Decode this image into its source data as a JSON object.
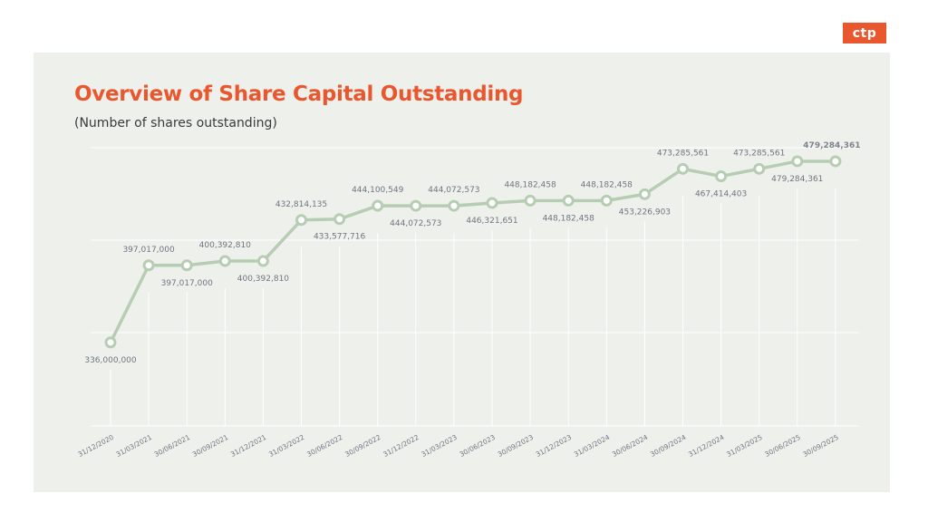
{
  "brand": {
    "logo_text": "ctp",
    "accent_color": "#e9572f"
  },
  "chart_data": {
    "type": "line",
    "title": "Overview of Share Capital Outstanding",
    "subtitle": "(Number of shares outstanding)",
    "xlabel": "",
    "ylabel": "",
    "grid": true,
    "legend": "none",
    "line_color": "#b7cdb3",
    "ylim": [
      270000000,
      490000000
    ],
    "categories": [
      "31/12/2020",
      "31/03/2021",
      "30/06/2021",
      "30/09/2021",
      "31/12/2021",
      "31/03/2022",
      "30/06/2022",
      "30/09/2022",
      "31/12/2022",
      "31/03/2023",
      "30/06/2023",
      "30/09/2023",
      "31/12/2023",
      "31/03/2024",
      "30/06/2024",
      "30/09/2024",
      "31/12/2024",
      "31/03/2025",
      "30/06/2025",
      "30/09/2025"
    ],
    "values": [
      336000000,
      397017000,
      397017000,
      400392810,
      400392810,
      432814135,
      433577716,
      444100549,
      444072573,
      444072573,
      446321651,
      448182458,
      448182458,
      448182458,
      453226903,
      473285561,
      467414403,
      473285561,
      479284361,
      479284361
    ],
    "data_labels": [
      "336,000,000",
      "397,017,000",
      "397,017,000",
      "400,392,810",
      "400,392,810",
      "432,814,135",
      "433,577,716",
      "444,100,549",
      "444,072,573",
      "444,072,573",
      "446,321,651",
      "448,182,458",
      "448,182,458",
      "448,182,458",
      "453,226,903",
      "473,285,561",
      "467,414,403",
      "473,285,561",
      "479,284,361",
      "479,284,361"
    ],
    "label_position": [
      "below",
      "above",
      "below",
      "above",
      "below",
      "above",
      "below",
      "above",
      "below",
      "above",
      "below",
      "above",
      "below",
      "above",
      "below",
      "above",
      "below",
      "above",
      "below",
      "above"
    ]
  }
}
